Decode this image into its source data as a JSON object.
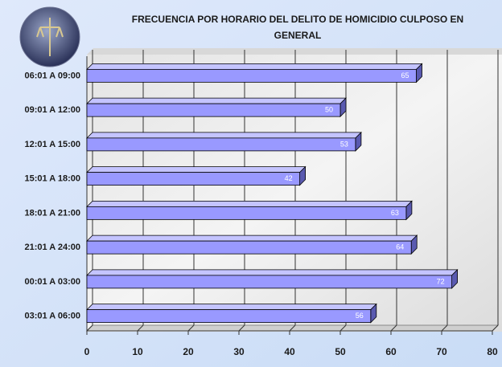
{
  "chart_data": {
    "type": "bar",
    "orientation": "horizontal",
    "title": "FRECUENCIA POR HORARIO DEL DELITO DE HOMICIDIO CULPOSO EN GENERAL",
    "categories": [
      "06:01 A 09:00",
      "09:01 A 12:00",
      "12:01 A 15:00",
      "15:01 A 18:00",
      "18:01 A 21:00",
      "21:01 A 24:00",
      "00:01 A 03:00",
      "03:01 A 06:00"
    ],
    "values": [
      65,
      50,
      53,
      42,
      63,
      64,
      72,
      56
    ],
    "color": "#9999ff",
    "xlim": [
      0,
      80
    ],
    "xticks": [
      0,
      10,
      20,
      30,
      40,
      50,
      60,
      70,
      80
    ],
    "grid": true
  }
}
